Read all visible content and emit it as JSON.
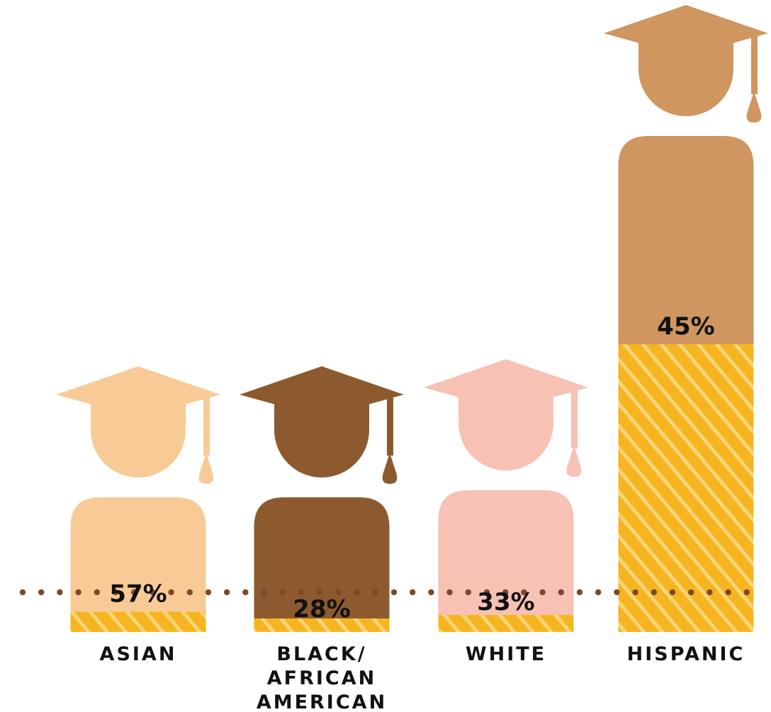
{
  "chart_data": {
    "type": "bar",
    "categories": [
      "ASIAN",
      "BLACK/ AFRICAN AMERICAN",
      "WHITE",
      "HISPANIC"
    ],
    "category_label_lines": [
      [
        "ASIAN"
      ],
      [
        "BLACK/",
        "AFRICAN",
        "AMERICAN"
      ],
      [
        "WHITE"
      ],
      [
        "HISPANIC"
      ]
    ],
    "values": [
      57,
      28,
      33,
      45
    ],
    "value_labels": [
      "57%",
      "28%",
      "33%",
      "45%"
    ],
    "hatched_portion_percent": [
      15,
      10,
      12,
      58
    ],
    "reference_line": "dotted",
    "colors": {
      "figures": [
        "#f8cb96",
        "#8d5a2f",
        "#f7c1b4",
        "#cf9660"
      ],
      "hatch_base": "#f6b520",
      "hatch_stripe": "#f7d67a",
      "dotted_line": "#7a4a2a"
    }
  }
}
